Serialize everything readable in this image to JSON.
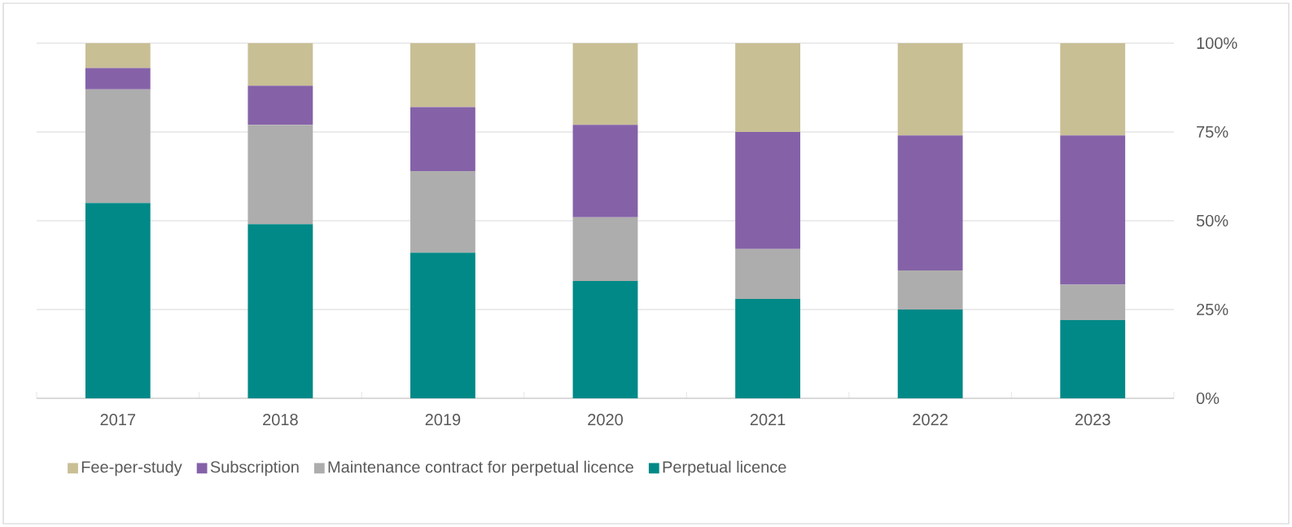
{
  "chart_data": {
    "type": "bar",
    "stacked": true,
    "categories": [
      "2017",
      "2018",
      "2019",
      "2020",
      "2021",
      "2022",
      "2023"
    ],
    "series": [
      {
        "name": "Perpetual licence",
        "color": "#008987",
        "values": [
          55,
          49,
          41,
          33,
          28,
          25,
          22
        ]
      },
      {
        "name": "Maintenance contract for perpetual licence",
        "color": "#adadad",
        "values": [
          32,
          28,
          23,
          18,
          14,
          11,
          10
        ]
      },
      {
        "name": "Subscription",
        "color": "#8562a8",
        "values": [
          6,
          11,
          18,
          26,
          33,
          38,
          42
        ]
      },
      {
        "name": "Fee-per-study",
        "color": "#c8bf95",
        "values": [
          7,
          12,
          18,
          23,
          25,
          26,
          26
        ]
      }
    ],
    "ylim": [
      0,
      100
    ],
    "yticks": [
      {
        "value": 0,
        "label": "0%"
      },
      {
        "value": 25,
        "label": "25%"
      },
      {
        "value": 50,
        "label": "50%"
      },
      {
        "value": 75,
        "label": "75%"
      },
      {
        "value": 100,
        "label": "100%"
      }
    ],
    "grid": "y",
    "legend": "bottom"
  }
}
